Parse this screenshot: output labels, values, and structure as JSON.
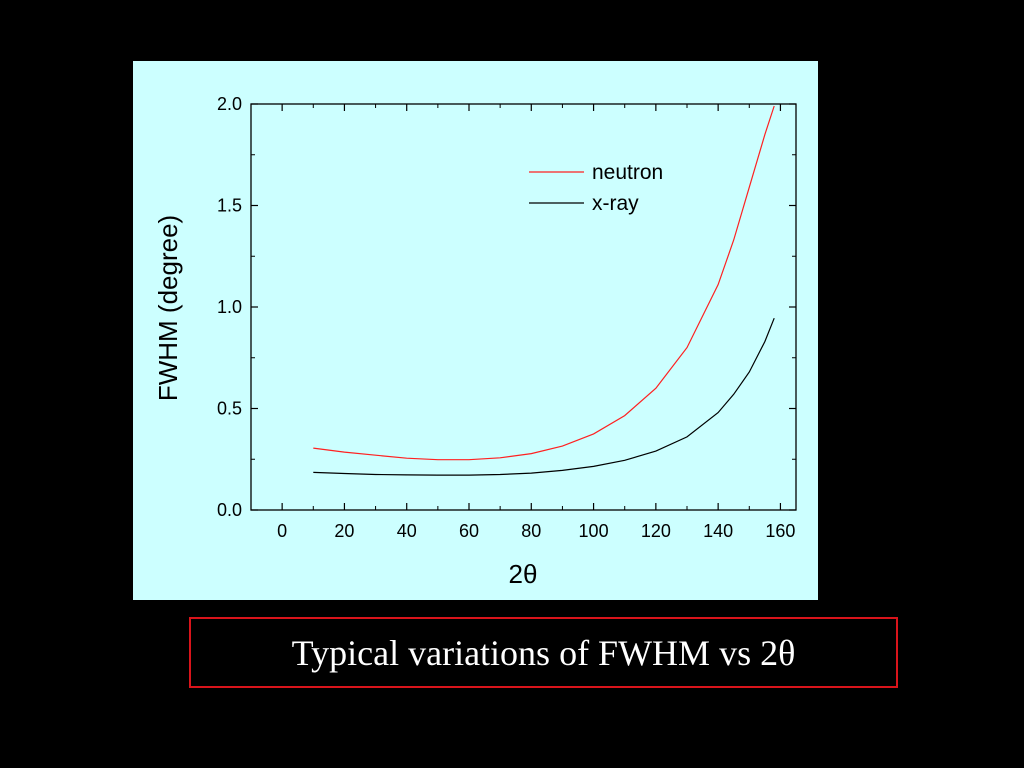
{
  "colors": {
    "background": "#000000",
    "panel": "#ccffff",
    "caption_border": "#d9141b"
  },
  "caption": {
    "text": "Typical variations of FWHM vs 2θ"
  },
  "chart_data": {
    "type": "line",
    "xlabel": "2θ",
    "ylabel": "FWHM (degree)",
    "xlim": [
      -10,
      165
    ],
    "ylim": [
      0,
      2.0
    ],
    "x_ticks": [
      0,
      20,
      40,
      60,
      80,
      100,
      120,
      140,
      160
    ],
    "x_tick_labels": [
      "0",
      "20",
      "40",
      "60",
      "80",
      "100",
      "120",
      "140",
      "160"
    ],
    "y_ticks": [
      0.0,
      0.5,
      1.0,
      1.5,
      2.0
    ],
    "y_tick_labels": [
      "0.0",
      "0.5",
      "1.0",
      "1.5",
      "2.0"
    ],
    "legend_position": "top-right",
    "grid": false,
    "series": [
      {
        "name": "neutron",
        "color": "#ff2020",
        "x": [
          10,
          20,
          30,
          40,
          50,
          60,
          70,
          80,
          90,
          100,
          110,
          120,
          130,
          140,
          145,
          150,
          155,
          158
        ],
        "y": [
          0.305,
          0.285,
          0.27,
          0.255,
          0.248,
          0.248,
          0.257,
          0.278,
          0.315,
          0.375,
          0.465,
          0.6,
          0.8,
          1.11,
          1.33,
          1.59,
          1.85,
          1.99
        ]
      },
      {
        "name": "x-ray",
        "color": "#000000",
        "x": [
          10,
          20,
          30,
          40,
          50,
          60,
          70,
          80,
          90,
          100,
          110,
          120,
          130,
          140,
          145,
          150,
          155,
          158
        ],
        "y": [
          0.185,
          0.18,
          0.175,
          0.173,
          0.172,
          0.172,
          0.175,
          0.182,
          0.195,
          0.215,
          0.245,
          0.29,
          0.36,
          0.48,
          0.57,
          0.68,
          0.83,
          0.945
        ]
      }
    ]
  }
}
